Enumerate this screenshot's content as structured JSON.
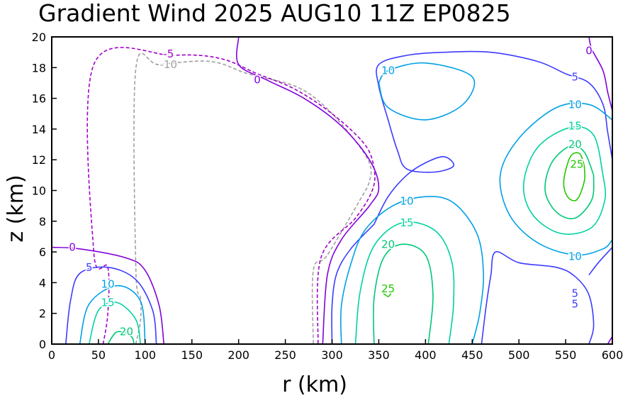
{
  "chart_data": {
    "type": "contour",
    "title": "Gradient Wind 2025 AUG10 11Z  EP0825",
    "xlabel": "r (km)",
    "ylabel": "z (km)",
    "xlim": [
      0,
      600
    ],
    "ylim": [
      0,
      20
    ],
    "xticks": [
      "0",
      "50",
      "100",
      "150",
      "200",
      "250",
      "300",
      "350",
      "400",
      "450",
      "500",
      "550",
      "600"
    ],
    "yticks": [
      "0",
      "2",
      "4",
      "6",
      "8",
      "10",
      "12",
      "14",
      "16",
      "18",
      "20"
    ],
    "grid": false,
    "levels": [
      -10,
      -5,
      0,
      5,
      10,
      15,
      20,
      25
    ],
    "colors": {
      "-10": "#a0a0a0",
      "-5": "#a000c8",
      "0": "#8200dc",
      "5": "#3c3cff",
      "10": "#00a0e6",
      "15": "#00d2a0",
      "20": "#00c878",
      "25": "#20c800"
    },
    "contour_labels": [
      {
        "text": "-5",
        "level": -5,
        "x": 125,
        "y": 18.9
      },
      {
        "text": "-10",
        "level": -10,
        "x": 125,
        "y": 18.2
      },
      {
        "text": "0",
        "level": 0,
        "x": 22,
        "y": 6.3
      },
      {
        "text": "5",
        "level": 5,
        "x": 40,
        "y": 5.0
      },
      {
        "text": "10",
        "level": 10,
        "x": 60,
        "y": 3.9
      },
      {
        "text": "15",
        "level": 15,
        "x": 60,
        "y": 2.7
      },
      {
        "text": "20",
        "level": 20,
        "x": 80,
        "y": 0.8
      },
      {
        "text": "0",
        "level": 0,
        "x": 220,
        "y": 17.2
      },
      {
        "text": "10",
        "level": 10,
        "x": 360,
        "y": 17.8
      },
      {
        "text": "5",
        "level": 5,
        "x": 560,
        "y": 17.4
      },
      {
        "text": "0",
        "level": 0,
        "x": 575,
        "y": 19.1
      },
      {
        "text": "10",
        "level": 10,
        "x": 560,
        "y": 15.6
      },
      {
        "text": "15",
        "level": 15,
        "x": 560,
        "y": 14.2
      },
      {
        "text": "20",
        "level": 20,
        "x": 560,
        "y": 13.0
      },
      {
        "text": "25",
        "level": 25,
        "x": 562,
        "y": 11.7
      },
      {
        "text": "10",
        "level": 10,
        "x": 380,
        "y": 9.3
      },
      {
        "text": "15",
        "level": 15,
        "x": 380,
        "y": 7.9
      },
      {
        "text": "20",
        "level": 20,
        "x": 360,
        "y": 6.5
      },
      {
        "text": "25",
        "level": 25,
        "x": 360,
        "y": 3.6
      },
      {
        "text": "10",
        "level": 10,
        "x": 560,
        "y": 5.7
      },
      {
        "text": "5",
        "level": 5,
        "x": 560,
        "y": 3.3
      },
      {
        "text": "5",
        "level": 5,
        "x": 560,
        "y": 2.6
      }
    ],
    "contours": [
      {
        "level": -10,
        "dashed": true,
        "points": [
          [
            90,
            0
          ],
          [
            95,
            1.5
          ],
          [
            95,
            3
          ],
          [
            90,
            5
          ],
          [
            90,
            17.9
          ],
          [
            115,
            18.2
          ],
          [
            170,
            18.4
          ],
          [
            210,
            17.6
          ],
          [
            260,
            16.8
          ],
          [
            290,
            15.6
          ],
          [
            320,
            13.6
          ],
          [
            340,
            11.8
          ],
          [
            340,
            10.6
          ],
          [
            330,
            9.4
          ],
          [
            295,
            5.8
          ],
          [
            280,
            4.8
          ],
          [
            280,
            0
          ]
        ]
      },
      {
        "level": -5,
        "dashed": true,
        "points": [
          [
            55,
            0
          ],
          [
            60,
            2
          ],
          [
            60,
            5
          ],
          [
            45,
            6
          ],
          [
            45,
            18.2
          ],
          [
            130,
            18.8
          ],
          [
            180,
            18.6
          ],
          [
            220,
            17.6
          ],
          [
            260,
            16.6
          ],
          [
            300,
            15.0
          ],
          [
            335,
            13.0
          ],
          [
            345,
            11.4
          ],
          [
            343,
            10.0
          ],
          [
            325,
            8.2
          ],
          [
            288,
            5.6
          ],
          [
            285,
            0
          ]
        ]
      },
      {
        "level": 0,
        "dashed": false,
        "points": [
          [
            0,
            6.3
          ],
          [
            30,
            6.2
          ],
          [
            80,
            5.6
          ],
          [
            100,
            4.8
          ],
          [
            115,
            2.5
          ],
          [
            120,
            0
          ]
        ]
      },
      {
        "level": 0,
        "dashed": false,
        "points": [
          [
            200,
            20
          ],
          [
            200,
            18.2
          ],
          [
            230,
            17.2
          ],
          [
            270,
            16.0
          ],
          [
            310,
            14.2
          ],
          [
            340,
            12.0
          ],
          [
            350,
            10.2
          ],
          [
            340,
            9.0
          ],
          [
            310,
            6.8
          ],
          [
            295,
            4.5
          ],
          [
            290,
            0
          ]
        ]
      },
      {
        "level": 0,
        "dashed": false,
        "points": [
          [
            575,
            20
          ],
          [
            578,
            19.2
          ],
          [
            590,
            17.8
          ],
          [
            595,
            16.4
          ],
          [
            600,
            15.2
          ]
        ]
      },
      {
        "level": 0,
        "dashed": false,
        "points": [
          [
            595,
            0
          ],
          [
            600,
            0.5
          ]
        ]
      },
      {
        "level": 5,
        "dashed": false,
        "points": [
          [
            15,
            0
          ],
          [
            20,
            2.8
          ],
          [
            30,
            4.6
          ],
          [
            60,
            5.0
          ],
          [
            90,
            4.2
          ],
          [
            108,
            2.2
          ],
          [
            112,
            0
          ]
        ]
      },
      {
        "level": 5,
        "dashed": false,
        "points": [
          [
            300,
            0
          ],
          [
            300,
            2.5
          ],
          [
            305,
            4.6
          ],
          [
            320,
            6.2
          ],
          [
            345,
            7.8
          ]
        ]
      },
      {
        "level": 5,
        "dashed": false,
        "points": [
          [
            345,
            7.8
          ],
          [
            360,
            9.6
          ],
          [
            380,
            11.0
          ],
          [
            400,
            11.8
          ],
          [
            420,
            12.2
          ],
          [
            430,
            11.6
          ],
          [
            410,
            11.2
          ],
          [
            380,
            11.4
          ],
          [
            370,
            12.6
          ],
          [
            360,
            14.6
          ],
          [
            350,
            16.8
          ],
          [
            350,
            18.2
          ],
          [
            380,
            18.8
          ],
          [
            420,
            19.0
          ],
          [
            470,
            19.0
          ],
          [
            520,
            18.4
          ],
          [
            550,
            17.6
          ],
          [
            575,
            17.0
          ],
          [
            590,
            15.6
          ],
          [
            595,
            13.8
          ],
          [
            600,
            12.0
          ]
        ]
      },
      {
        "level": 5,
        "dashed": false,
        "points": [
          [
            460,
            0
          ],
          [
            465,
            2.5
          ],
          [
            470,
            4.5
          ],
          [
            475,
            6.0
          ],
          [
            500,
            5.3
          ],
          [
            540,
            5.0
          ],
          [
            560,
            4.4
          ],
          [
            575,
            3.2
          ],
          [
            580,
            1.2
          ],
          [
            575,
            0
          ]
        ]
      },
      {
        "level": 5,
        "dashed": false,
        "points": [
          [
            600,
            6.3
          ],
          [
            585,
            5.3
          ],
          [
            575,
            4.5
          ]
        ]
      },
      {
        "level": 10,
        "dashed": false,
        "points": [
          [
            30,
            0
          ],
          [
            40,
            2.6
          ],
          [
            70,
            3.8
          ],
          [
            95,
            2.8
          ],
          [
            100,
            0
          ]
        ]
      },
      {
        "level": 10,
        "dashed": false,
        "points": [
          [
            310,
            0
          ],
          [
            310,
            2.5
          ],
          [
            320,
            5.2
          ],
          [
            335,
            7.4
          ],
          [
            365,
            9.0
          ],
          [
            400,
            9.6
          ],
          [
            430,
            9.2
          ],
          [
            455,
            7.2
          ],
          [
            462,
            4.6
          ],
          [
            458,
            2.0
          ],
          [
            450,
            0
          ]
        ]
      },
      {
        "level": 10,
        "dashed": false,
        "points": [
          [
            350,
            17.0
          ],
          [
            360,
            17.8
          ],
          [
            400,
            18.3
          ],
          [
            450,
            17.4
          ],
          [
            440,
            15.6
          ],
          [
            400,
            14.6
          ],
          [
            360,
            15.4
          ],
          [
            350,
            17.0
          ]
        ]
      },
      {
        "level": 10,
        "dashed": false,
        "points": [
          [
            600,
            14.6
          ],
          [
            575,
            15.6
          ],
          [
            540,
            15.4
          ],
          [
            500,
            13.4
          ],
          [
            480,
            11.0
          ],
          [
            490,
            8.4
          ],
          [
            520,
            6.6
          ],
          [
            560,
            5.8
          ],
          [
            590,
            6.2
          ],
          [
            600,
            6.8
          ]
        ]
      },
      {
        "level": 15,
        "dashed": false,
        "points": [
          [
            40,
            0
          ],
          [
            50,
            2.2
          ],
          [
            70,
            2.7
          ],
          [
            90,
            1.6
          ],
          [
            95,
            0
          ]
        ]
      },
      {
        "level": 15,
        "dashed": false,
        "points": [
          [
            325,
            0
          ],
          [
            330,
            3.4
          ],
          [
            345,
            6.4
          ],
          [
            375,
            7.9
          ],
          [
            410,
            7.4
          ],
          [
            428,
            5.4
          ],
          [
            430,
            2.6
          ],
          [
            425,
            0
          ]
        ]
      },
      {
        "level": 15,
        "dashed": false,
        "points": [
          [
            590,
            11.0
          ],
          [
            580,
            13.6
          ],
          [
            555,
            14.1
          ],
          [
            520,
            12.8
          ],
          [
            505,
            10.4
          ],
          [
            515,
            8.4
          ],
          [
            545,
            7.2
          ],
          [
            578,
            7.6
          ],
          [
            592,
            9.4
          ],
          [
            590,
            11.0
          ]
        ]
      },
      {
        "level": 20,
        "dashed": false,
        "points": [
          [
            60,
            0
          ],
          [
            70,
            0.8
          ],
          [
            85,
            0.5
          ],
          [
            88,
            0
          ]
        ]
      },
      {
        "level": 20,
        "dashed": false,
        "points": [
          [
            345,
            0
          ],
          [
            345,
            3.0
          ],
          [
            355,
            5.6
          ],
          [
            375,
            6.5
          ],
          [
            400,
            5.8
          ],
          [
            408,
            3.2
          ],
          [
            403,
            0
          ]
        ]
      },
      {
        "level": 20,
        "dashed": false,
        "points": [
          [
            580,
            11.0
          ],
          [
            570,
            12.5
          ],
          [
            555,
            12.9
          ],
          [
            535,
            11.8
          ],
          [
            528,
            10.0
          ],
          [
            540,
            8.6
          ],
          [
            560,
            8.2
          ],
          [
            578,
            9.4
          ],
          [
            580,
            11.0
          ]
        ]
      },
      {
        "level": 25,
        "dashed": false,
        "points": [
          [
            355,
            3.3
          ],
          [
            360,
            3.1
          ],
          [
            363,
            3.3
          ]
        ]
      },
      {
        "level": 25,
        "dashed": false,
        "points": [
          [
            570,
            11.6
          ],
          [
            565,
            12.4
          ],
          [
            555,
            12.2
          ],
          [
            548,
            10.6
          ],
          [
            552,
            9.6
          ],
          [
            562,
            9.4
          ],
          [
            570,
            10.6
          ],
          [
            570,
            11.6
          ]
        ]
      }
    ]
  }
}
